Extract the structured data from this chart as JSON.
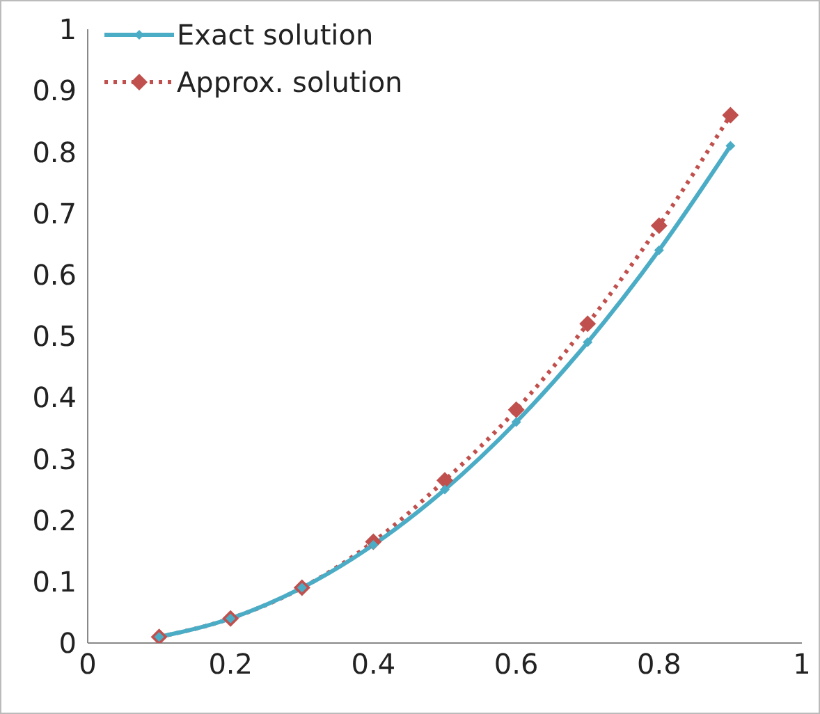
{
  "chart_data": {
    "type": "line",
    "x": [
      0.1,
      0.2,
      0.3,
      0.4,
      0.5,
      0.6,
      0.7,
      0.8,
      0.9
    ],
    "series": [
      {
        "name": "Exact solution",
        "color": "#4bacc6",
        "line_style": "solid",
        "values": [
          0.01,
          0.04,
          0.09,
          0.16,
          0.25,
          0.36,
          0.49,
          0.64,
          0.81
        ]
      },
      {
        "name": "Approx. solution",
        "color": "#c0504d",
        "line_style": "dotted",
        "values": [
          0.01,
          0.04,
          0.09,
          0.165,
          0.265,
          0.38,
          0.52,
          0.68,
          0.86
        ]
      }
    ],
    "xlim": [
      0,
      1
    ],
    "xticks": [
      0,
      0.2,
      0.4,
      0.6,
      0.8,
      1
    ],
    "ylim": [
      0,
      1
    ],
    "yticks": [
      0,
      0.1,
      0.2,
      0.3,
      0.4,
      0.5,
      0.6,
      0.7,
      0.8,
      0.9,
      1
    ],
    "grid": false,
    "legend": "top left",
    "marker": "diamond"
  }
}
